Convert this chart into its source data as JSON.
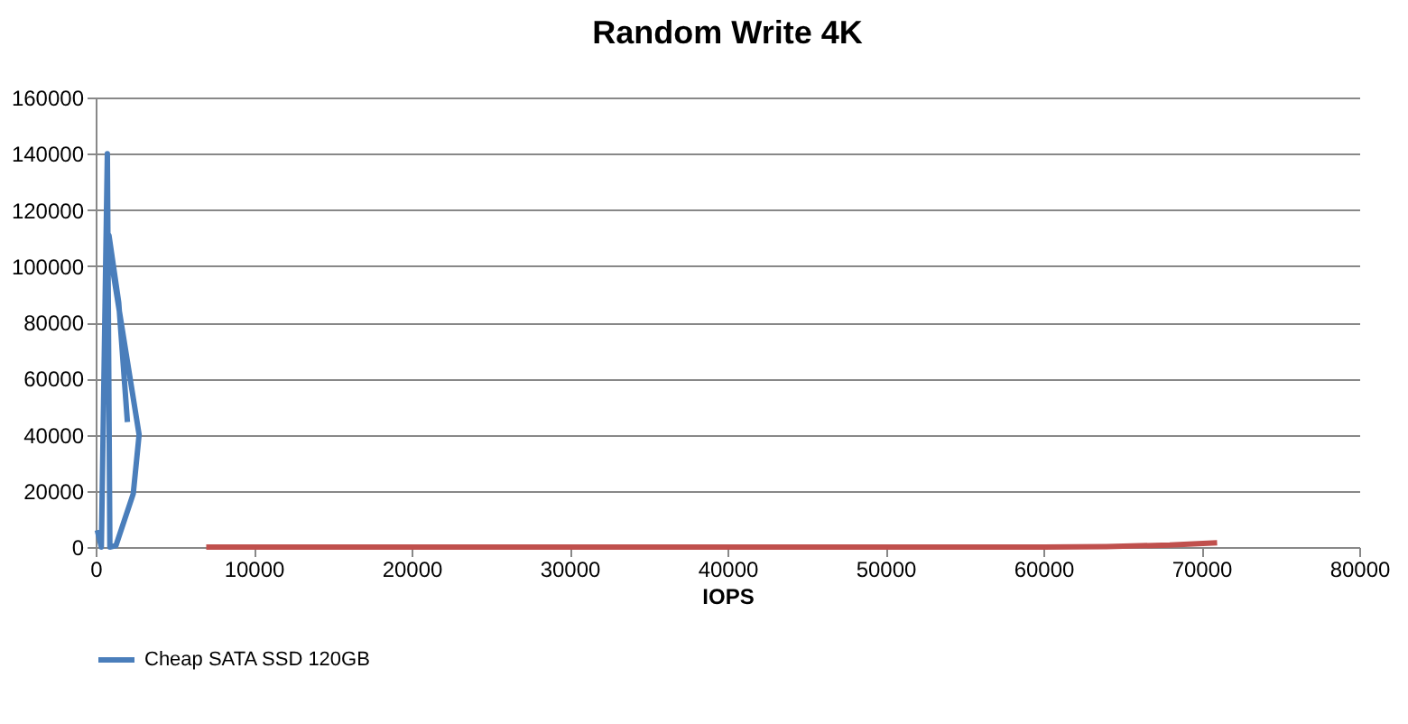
{
  "chart_data": {
    "type": "line",
    "title": "Random Write 4K",
    "xlabel": "IOPS",
    "xlim": [
      0,
      80000
    ],
    "xticks": [
      0,
      10000,
      20000,
      30000,
      40000,
      50000,
      60000,
      70000,
      80000
    ],
    "ylim": [
      0,
      160000
    ],
    "yticks": [
      0,
      20000,
      40000,
      60000,
      80000,
      100000,
      120000,
      140000,
      160000
    ],
    "grid": "y",
    "legend": "bottom",
    "marker": "none",
    "line_style": "solid",
    "series": [
      {
        "name": "Cheap SATA SSD 120GB",
        "color": "#4a7ebb",
        "x": [
          100,
          360,
          740,
          900,
          1280,
          2380,
          2750,
          2010,
          1100,
          840,
          1460,
          2010
        ],
        "values": [
          6000,
          0,
          140000,
          0,
          500,
          19000,
          40000,
          66000,
          98000,
          111000,
          87000,
          44500
        ]
      },
      {
        "color": "#c0504d",
        "x": [
          7000,
          20000,
          40000,
          60000,
          64000,
          68000,
          71000
        ],
        "values": [
          0,
          0,
          0,
          0,
          200,
          700,
          1500
        ]
      }
    ]
  }
}
